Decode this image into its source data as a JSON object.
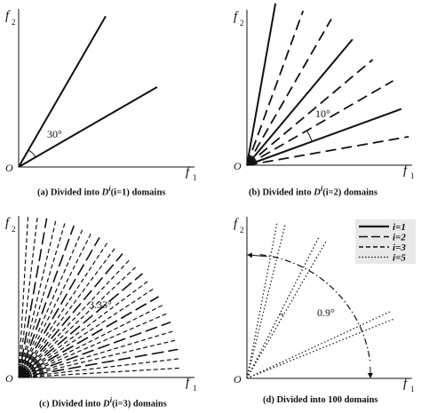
{
  "panels": [
    {
      "id": "a",
      "caption_pre": "(a) Divided into ",
      "caption_mid": "",
      "caption_post": " domains",
      "caption_D": "D",
      "caption_sup": "i",
      "caption_paren": "(i=1)",
      "axis_x": "f",
      "axis_x_sub": "1",
      "axis_y": "f",
      "axis_y_sub": "2",
      "origin": "O",
      "angle_label": "30°",
      "lines_deg": [
        30,
        60
      ],
      "line_style": "solid"
    },
    {
      "id": "b",
      "caption_pre": "(b) Divided into ",
      "caption_post": " domains",
      "caption_D": "D",
      "caption_sup": "i",
      "caption_paren": "(i=2)",
      "axis_x": "f",
      "axis_x_sub": "1",
      "axis_y": "f",
      "axis_y_sub": "2",
      "origin": "O",
      "angle_label": "10°"
    },
    {
      "id": "c",
      "caption_pre": "(c) Divided into ",
      "caption_post": " domains",
      "caption_D": "D",
      "caption_sup": "i",
      "caption_paren": "(i=3)",
      "axis_x": "f",
      "axis_x_sub": "1",
      "axis_y": "f",
      "axis_y_sub": "2",
      "origin": "O",
      "angle_label": "3.33°"
    },
    {
      "id": "d",
      "caption_pre": "(d) Divided into 100 domains",
      "axis_x": "f",
      "axis_x_sub": "1",
      "axis_y": "f",
      "axis_y_sub": "2",
      "origin": "O",
      "angle_label": "0.9°",
      "legend": [
        {
          "label": "i=1",
          "style": "solid"
        },
        {
          "label": "i=2",
          "style": "longdash"
        },
        {
          "label": "i=3",
          "style": "dash"
        },
        {
          "label": "i=5",
          "style": "dot"
        }
      ]
    }
  ],
  "colors": {
    "ink": "#111111",
    "legend_bg": "#e8e8e8"
  }
}
